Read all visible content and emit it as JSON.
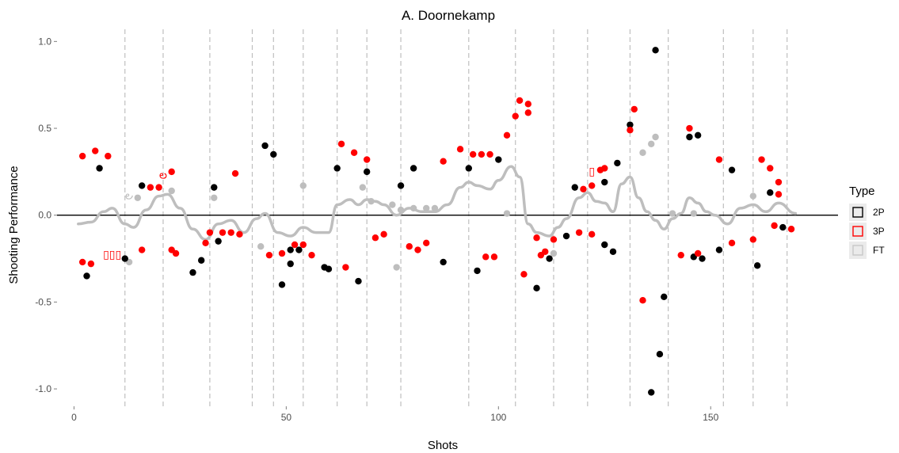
{
  "chart_data": {
    "type": "scatter",
    "title": "A. Doornekamp",
    "xlabel": "Shots",
    "ylabel": "Shooting Performance",
    "xlim": [
      -4,
      180
    ],
    "ylim": [
      -1.1,
      1.07
    ],
    "x_ticks": [
      0,
      50,
      100,
      150
    ],
    "y_ticks": [
      -1.0,
      -0.5,
      0.0,
      0.5,
      1.0
    ],
    "y_tick_labels": [
      "-1.0",
      "-0.5",
      "0.0",
      "0.5",
      "1.0"
    ],
    "grid": false,
    "baseline_y": 0,
    "period_breaks_x": [
      12,
      21,
      32,
      42,
      47,
      54,
      62,
      69,
      77,
      93,
      104,
      113,
      121,
      131,
      140,
      153,
      160,
      168
    ],
    "legend": {
      "title": "Type",
      "position": "right",
      "entries": [
        {
          "label": "2P",
          "color": "#000000"
        },
        {
          "label": "3P",
          "color": "#ff0000"
        },
        {
          "label": "FT",
          "color": "#c8c8c8"
        }
      ]
    },
    "colors": {
      "2P": "#000000",
      "3P": "#ff0000",
      "FT": "#bebebe",
      "smooth": "#bebebe",
      "breaks": "#bfbfbf"
    },
    "series": [
      {
        "name": "2P",
        "points": [
          [
            3,
            -0.35
          ],
          [
            6,
            0.27
          ],
          [
            12,
            -0.25
          ],
          [
            16,
            0.17
          ],
          [
            28,
            -0.33
          ],
          [
            30,
            -0.26
          ],
          [
            33,
            0.16
          ],
          [
            34,
            -0.15
          ],
          [
            45,
            0.4
          ],
          [
            47,
            0.35
          ],
          [
            49,
            -0.4
          ],
          [
            51,
            -0.2
          ],
          [
            51,
            -0.28
          ],
          [
            53,
            -0.2
          ],
          [
            59,
            -0.3
          ],
          [
            60,
            -0.31
          ],
          [
            62,
            0.27
          ],
          [
            67,
            -0.38
          ],
          [
            69,
            0.25
          ],
          [
            77,
            0.17
          ],
          [
            80,
            0.27
          ],
          [
            87,
            -0.27
          ],
          [
            93,
            0.27
          ],
          [
            95,
            -0.32
          ],
          [
            100,
            0.32
          ],
          [
            109,
            -0.42
          ],
          [
            112,
            -0.25
          ],
          [
            116,
            -0.12
          ],
          [
            118,
            0.16
          ],
          [
            125,
            0.19
          ],
          [
            125,
            -0.17
          ],
          [
            127,
            -0.21
          ],
          [
            128,
            0.3
          ],
          [
            131,
            0.52
          ],
          [
            136,
            -1.02
          ],
          [
            137,
            0.95
          ],
          [
            138,
            -0.8
          ],
          [
            139,
            -0.47
          ],
          [
            145,
            0.45
          ],
          [
            146,
            -0.24
          ],
          [
            147,
            0.46
          ],
          [
            148,
            -0.25
          ],
          [
            152,
            -0.2
          ],
          [
            155,
            0.26
          ],
          [
            161,
            -0.29
          ],
          [
            164,
            0.13
          ],
          [
            167,
            -0.07
          ]
        ]
      },
      {
        "name": "3P",
        "points": [
          [
            2,
            0.34
          ],
          [
            2,
            -0.27
          ],
          [
            4,
            -0.28
          ],
          [
            5,
            0.37
          ],
          [
            8,
            0.34
          ],
          [
            16,
            -0.2
          ],
          [
            18,
            0.16
          ],
          [
            20,
            0.16
          ],
          [
            23,
            0.25
          ],
          [
            23,
            -0.2
          ],
          [
            24,
            -0.22
          ],
          [
            31,
            -0.16
          ],
          [
            32,
            -0.1
          ],
          [
            35,
            -0.1
          ],
          [
            37,
            -0.1
          ],
          [
            38,
            0.24
          ],
          [
            39,
            -0.11
          ],
          [
            46,
            -0.23
          ],
          [
            49,
            -0.22
          ],
          [
            52,
            -0.17
          ],
          [
            54,
            -0.17
          ],
          [
            56,
            -0.23
          ],
          [
            63,
            0.41
          ],
          [
            64,
            -0.3
          ],
          [
            66,
            0.36
          ],
          [
            69,
            0.32
          ],
          [
            71,
            -0.13
          ],
          [
            73,
            -0.11
          ],
          [
            79,
            -0.18
          ],
          [
            81,
            -0.2
          ],
          [
            83,
            -0.16
          ],
          [
            87,
            0.31
          ],
          [
            91,
            0.38
          ],
          [
            94,
            0.35
          ],
          [
            96,
            0.35
          ],
          [
            97,
            -0.24
          ],
          [
            98,
            0.35
          ],
          [
            99,
            -0.24
          ],
          [
            102,
            0.46
          ],
          [
            104,
            0.57
          ],
          [
            105,
            0.66
          ],
          [
            106,
            -0.34
          ],
          [
            107,
            0.59
          ],
          [
            107,
            0.64
          ],
          [
            109,
            -0.13
          ],
          [
            110,
            -0.23
          ],
          [
            111,
            -0.21
          ],
          [
            113,
            -0.14
          ],
          [
            119,
            -0.1
          ],
          [
            120,
            0.15
          ],
          [
            122,
            0.17
          ],
          [
            122,
            -0.11
          ],
          [
            124,
            0.26
          ],
          [
            125,
            0.27
          ],
          [
            131,
            0.49
          ],
          [
            132,
            0.61
          ],
          [
            134,
            -0.49
          ],
          [
            143,
            -0.23
          ],
          [
            145,
            0.5
          ],
          [
            147,
            -0.22
          ],
          [
            152,
            0.32
          ],
          [
            155,
            -0.16
          ],
          [
            160,
            -0.14
          ],
          [
            162,
            0.32
          ],
          [
            164,
            0.27
          ],
          [
            165,
            -0.06
          ],
          [
            166,
            0.19
          ],
          [
            166,
            0.12
          ],
          [
            169,
            -0.08
          ]
        ]
      },
      {
        "name": "FT",
        "points": [
          [
            13,
            -0.27
          ],
          [
            15,
            0.1
          ],
          [
            23,
            0.14
          ],
          [
            33,
            0.1
          ],
          [
            44,
            -0.18
          ],
          [
            54,
            0.17
          ],
          [
            68,
            0.16
          ],
          [
            70,
            0.08
          ],
          [
            75,
            0.06
          ],
          [
            76,
            -0.3
          ],
          [
            77,
            0.03
          ],
          [
            80,
            0.04
          ],
          [
            83,
            0.04
          ],
          [
            85,
            0.04
          ],
          [
            102,
            0.01
          ],
          [
            113,
            -0.22
          ],
          [
            134,
            0.36
          ],
          [
            136,
            0.41
          ],
          [
            137,
            0.45
          ],
          [
            141,
            0.01
          ],
          [
            146,
            0.01
          ],
          [
            160,
            0.11
          ]
        ]
      }
    ],
    "smooth_line": {
      "name": "trend",
      "points": [
        [
          1,
          -0.05
        ],
        [
          4,
          -0.04
        ],
        [
          7,
          0.02
        ],
        [
          9,
          0.04
        ],
        [
          12,
          -0.05
        ],
        [
          14,
          -0.07
        ],
        [
          17,
          0.03
        ],
        [
          20,
          0.11
        ],
        [
          22,
          0.12
        ],
        [
          25,
          0.04
        ],
        [
          28,
          -0.08
        ],
        [
          31,
          -0.14
        ],
        [
          34,
          -0.05
        ],
        [
          37,
          -0.03
        ],
        [
          40,
          -0.1
        ],
        [
          43,
          -0.02
        ],
        [
          45,
          0.01
        ],
        [
          48,
          -0.1
        ],
        [
          51,
          -0.12
        ],
        [
          54,
          -0.07
        ],
        [
          57,
          -0.1
        ],
        [
          60,
          -0.1
        ],
        [
          62,
          0.06
        ],
        [
          65,
          0.09
        ],
        [
          67,
          0.06
        ],
        [
          69,
          0.09
        ],
        [
          71,
          0.08
        ],
        [
          73,
          0.06
        ],
        [
          76,
          0.0
        ],
        [
          79,
          0.04
        ],
        [
          82,
          0.02
        ],
        [
          85,
          0.02
        ],
        [
          88,
          0.06
        ],
        [
          91,
          0.16
        ],
        [
          93,
          0.19
        ],
        [
          95,
          0.17
        ],
        [
          98,
          0.15
        ],
        [
          100,
          0.2
        ],
        [
          103,
          0.28
        ],
        [
          105,
          0.22
        ],
        [
          107,
          -0.05
        ],
        [
          109,
          -0.1
        ],
        [
          112,
          -0.12
        ],
        [
          114,
          -0.07
        ],
        [
          116,
          -0.02
        ],
        [
          119,
          0.1
        ],
        [
          121,
          0.13
        ],
        [
          123,
          0.08
        ],
        [
          125,
          0.07
        ],
        [
          127,
          0.02
        ],
        [
          129,
          0.18
        ],
        [
          131,
          0.22
        ],
        [
          133,
          0.1
        ],
        [
          135,
          0.02
        ],
        [
          137,
          -0.03
        ],
        [
          139,
          -0.08
        ],
        [
          141,
          -0.02
        ],
        [
          143,
          0.01
        ],
        [
          145,
          0.1
        ],
        [
          147,
          0.07
        ],
        [
          149,
          0.02
        ],
        [
          151,
          0.0
        ],
        [
          154,
          -0.05
        ],
        [
          157,
          0.04
        ],
        [
          160,
          0.06
        ],
        [
          163,
          0.02
        ],
        [
          166,
          0.07
        ],
        [
          170,
          0.01
        ]
      ]
    },
    "annotations": [
      {
        "text": "ల",
        "x": 21,
        "y": 0.23,
        "color": "#ff0000"
      },
      {
        "text": "౿",
        "x": 13,
        "y": 0.11,
        "color": "#bebebe"
      },
      {
        "text": "▯▯▯",
        "x": 9,
        "y": -0.23,
        "color": "#ff0000"
      },
      {
        "text": "▯",
        "x": 122,
        "y": 0.25,
        "color": "#ff0000"
      }
    ]
  }
}
